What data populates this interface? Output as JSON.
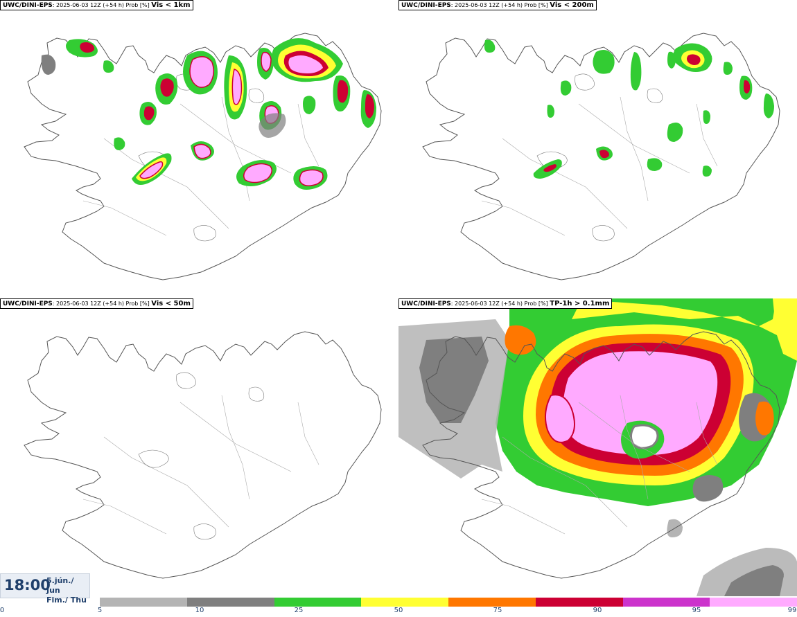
{
  "panels": [
    {
      "model": "UWC/DINI-EPS",
      "run": ": 2025-06-03 12Z (+54 h) Prob [%]",
      "variable": "Vis < 1km"
    },
    {
      "model": "UWC/DINI-EPS",
      "run": ": 2025-06-03 12Z (+54 h) Prob [%]",
      "variable": "Vis < 200m"
    },
    {
      "model": "UWC/DINI-EPS",
      "run": ": 2025-06-03 12Z (+54 h) Prob [%]",
      "variable": "Vis < 50m"
    },
    {
      "model": "UWC/DINI-EPS",
      "run": ": 2025-06-03 12Z (+54 h) Prob [%]",
      "variable": "TP-1h > 0.1mm"
    }
  ],
  "valid_time": {
    "time": "18:00",
    "date_line1": "5.jún./ Jun",
    "date_line2": "Fim./ Thu"
  },
  "colorbar": {
    "ticks": [
      "0",
      "5",
      "10",
      "25",
      "50",
      "75",
      "90",
      "95",
      "99"
    ],
    "colors": [
      "#ffffff",
      "#b4b4b4",
      "#7f7f7f",
      "#33cc33",
      "#ffff33",
      "#ff7700",
      "#cc0033",
      "#cc33cc",
      "#ffaaff"
    ]
  }
}
